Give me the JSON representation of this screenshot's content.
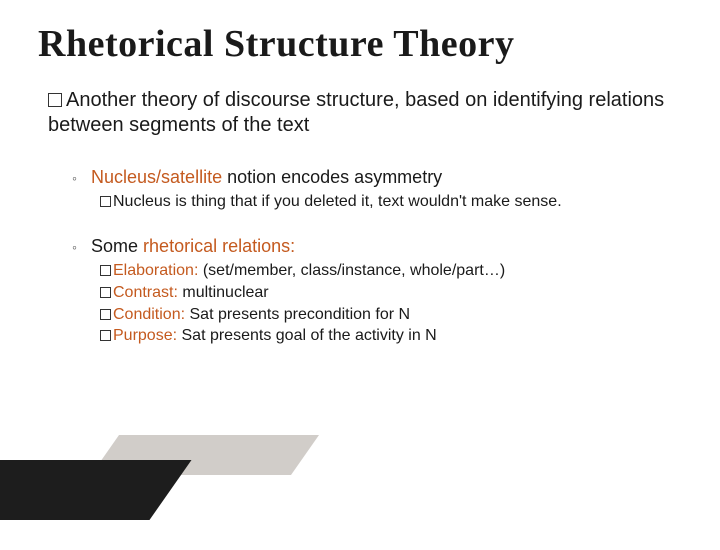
{
  "colors": {
    "accent": "#c45a1f",
    "text": "#1a1a1a",
    "background": "#ffffff",
    "dec_dark": "#1d1d1d",
    "dec_grey": "#c9c4c0"
  },
  "title": "Rhetorical Structure Theory",
  "main_bullet": {
    "lead": "Another",
    "rest": " theory of discourse structure, based on identifying relations between segments of the text"
  },
  "sub": [
    {
      "head_plain_before": "",
      "head_accent": "Nucleus/satellite",
      "head_plain_after": " notion encodes asymmetry",
      "nested": [
        {
          "prefix": "",
          "accent": "",
          "text": "Nucleus is thing that if you deleted it, text wouldn't make sense."
        }
      ]
    },
    {
      "head_plain_before": "Some ",
      "head_accent": "rhetorical relations:",
      "head_plain_after": "",
      "nested": [
        {
          "accent": "Elaboration:",
          "text": " (set/member, class/instance,  whole/part…)"
        },
        {
          "accent": "Contrast:",
          "text": " multinuclear"
        },
        {
          "accent": "Condition:",
          "text": "  Sat presents precondition for N"
        },
        {
          "accent": "Purpose:",
          "text": " Sat presents goal of the activity in N"
        }
      ]
    }
  ]
}
